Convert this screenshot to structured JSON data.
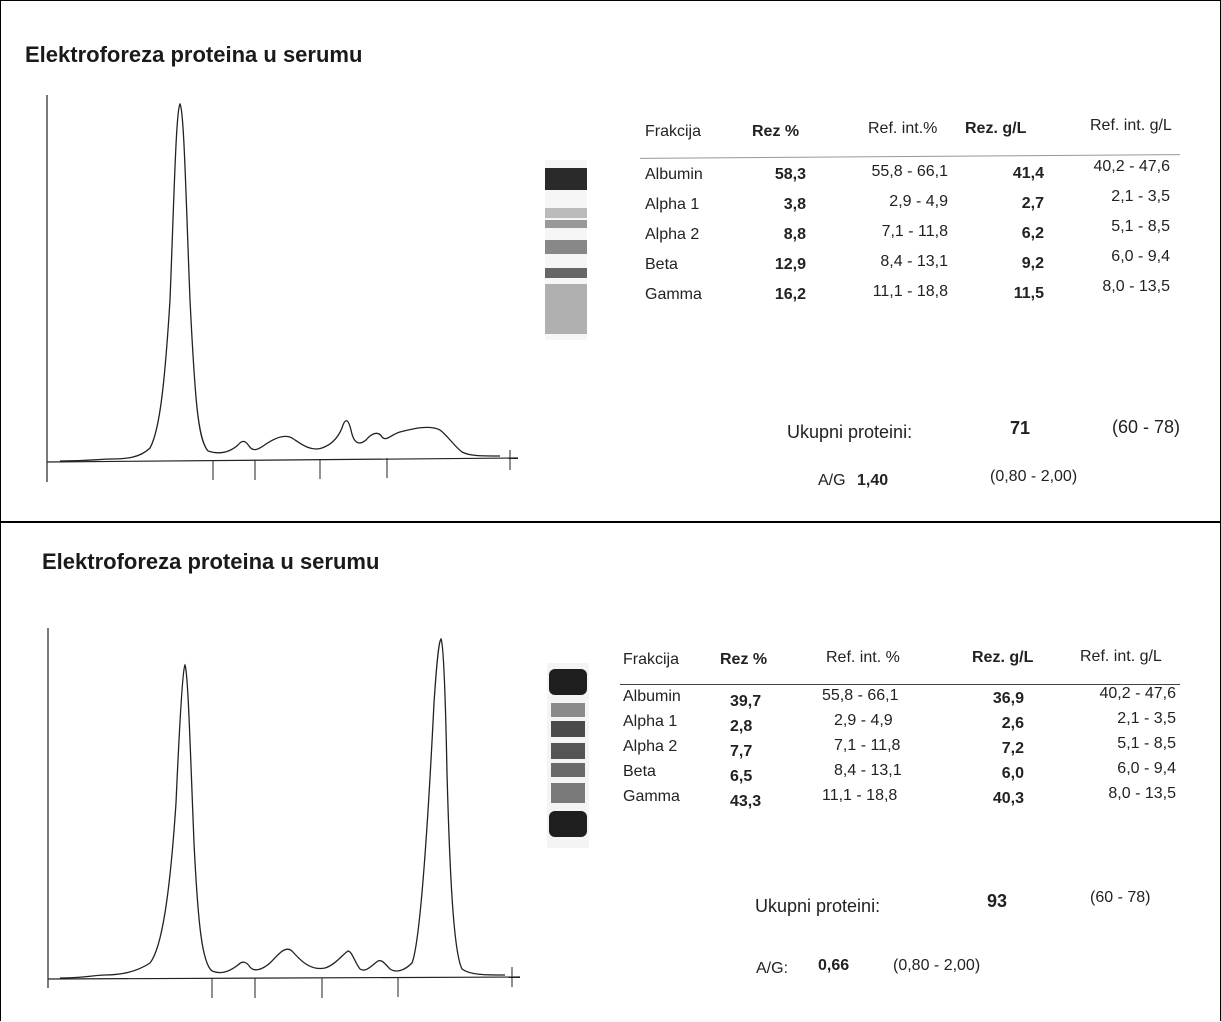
{
  "title": "Elektroforeza proteina u serumu",
  "headers": [
    "Frakcija",
    "Rez %",
    "Ref. int.%",
    "Rez. g/L",
    "Ref. int. g/L"
  ],
  "headers2": [
    "Frakcija",
    "Rez %",
    "Ref. int. %",
    "Rez. g/L",
    "Ref. int. g/L"
  ],
  "fractions": [
    "Albumin",
    "Alpha 1",
    "Alpha 2",
    "Beta",
    "Gamma"
  ],
  "ref_pct": [
    "55,8 - 66,1",
    "2,9 -  4,9",
    "7,1 - 11,8",
    "8,4 - 13,1",
    "11,1 - 18,8"
  ],
  "ref_gl": [
    "40,2 -  47,6",
    "2,1 -  3,5",
    "5,1 -  8,5",
    "6,0 -  9,4",
    "8,0 -  13,5"
  ],
  "reports": [
    {
      "rez_pct": [
        "58,3",
        "3,8",
        "8,8",
        "12,9",
        "16,2"
      ],
      "rez_gl": [
        "41,4",
        "2,7",
        "6,2",
        "9,2",
        "11,5"
      ],
      "total_label": "Ukupni proteini:",
      "total_value": "71",
      "total_ref": "(60 - 78)",
      "ag_label": "A/G",
      "ag_value": "1,40",
      "ag_ref": "(0,80 - 2,00)"
    },
    {
      "rez_pct": [
        "39,7",
        "2,8",
        "7,7",
        "6,5",
        "43,3"
      ],
      "rez_gl": [
        "36,9",
        "2,6",
        "7,2",
        "6,0",
        "40,3"
      ],
      "total_label": "Ukupni proteini:",
      "total_value": "93",
      "total_ref": "(60  -  78)",
      "ag_label": "A/G:",
      "ag_value": "0,66",
      "ag_ref": "(0,80 - 2,00)"
    }
  ]
}
